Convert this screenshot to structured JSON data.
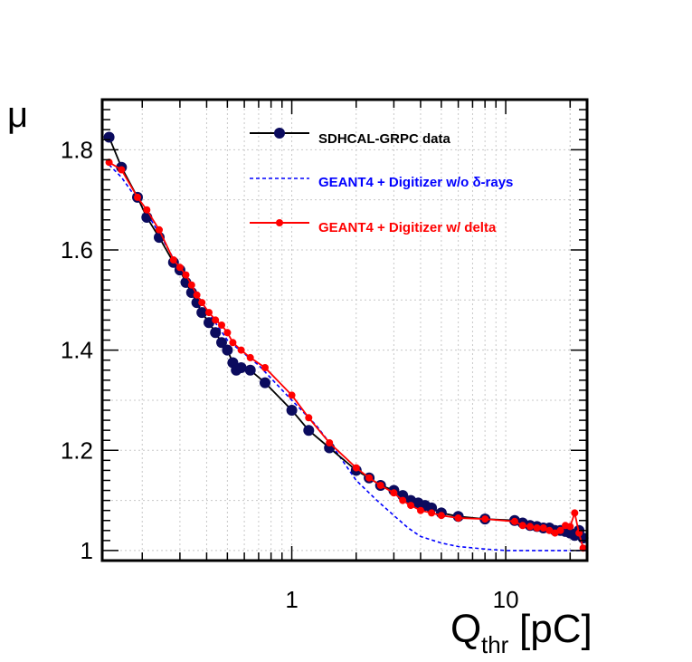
{
  "chart_data": {
    "type": "line",
    "x_scale": "log",
    "xlim": [
      0.13,
      24
    ],
    "ylim": [
      0.98,
      1.9
    ],
    "xlabel_main": "Q",
    "xlabel_sub": "thr",
    "xlabel_unit": "[pC]",
    "ylabel": "μ",
    "grid": true,
    "y_ticks": [
      {
        "value": 1.0,
        "label": "1"
      },
      {
        "value": 1.2,
        "label": "1.2"
      },
      {
        "value": 1.4,
        "label": "1.4"
      },
      {
        "value": 1.6,
        "label": "1.6"
      },
      {
        "value": 1.8,
        "label": "1.8"
      }
    ],
    "x_tick_labels": [
      {
        "value": 1,
        "label": "1"
      },
      {
        "value": 10,
        "label": "10"
      }
    ],
    "legend_position": "top-right",
    "series": [
      {
        "name": "SDHCAL-GRPC data",
        "color": "#0b0b5e",
        "line_color": "#000000",
        "style": "solid-markers",
        "x": [
          0.14,
          0.16,
          0.19,
          0.21,
          0.24,
          0.28,
          0.3,
          0.32,
          0.34,
          0.36,
          0.38,
          0.41,
          0.44,
          0.47,
          0.5,
          0.53,
          0.55,
          0.58,
          0.64,
          0.75,
          1.0,
          1.2,
          1.5,
          2.0,
          2.3,
          2.6,
          3.0,
          3.3,
          3.6,
          3.9,
          4.2,
          4.5,
          5.0,
          6.0,
          8.0,
          11.0,
          12.0,
          13.0,
          14.0,
          15.0,
          16.0,
          17.0,
          18.0,
          19.0,
          20.0,
          21.0,
          22.0,
          23.0
        ],
        "y": [
          1.825,
          1.765,
          1.705,
          1.665,
          1.625,
          1.575,
          1.56,
          1.535,
          1.515,
          1.495,
          1.475,
          1.455,
          1.435,
          1.415,
          1.4,
          1.375,
          1.36,
          1.365,
          1.36,
          1.335,
          1.28,
          1.24,
          1.205,
          1.16,
          1.145,
          1.13,
          1.12,
          1.11,
          1.1,
          1.095,
          1.09,
          1.085,
          1.075,
          1.068,
          1.063,
          1.06,
          1.055,
          1.05,
          1.048,
          1.045,
          1.045,
          1.04,
          1.04,
          1.038,
          1.035,
          1.03,
          1.04,
          1.025
        ]
      },
      {
        "name": "GEANT4 + Digitizer w/o δ-rays",
        "color": "#0000ff",
        "style": "dashed",
        "x": [
          0.14,
          0.16,
          0.19,
          0.22,
          0.25,
          0.3,
          0.4,
          0.5,
          0.7,
          1.0,
          1.3,
          1.6,
          2.0,
          2.5,
          3.0,
          3.5,
          4.0,
          5.0,
          6.0,
          8.0,
          10.0,
          15.0,
          20.0,
          24.0
        ],
        "y": [
          1.77,
          1.745,
          1.7,
          1.66,
          1.62,
          1.56,
          1.48,
          1.42,
          1.37,
          1.3,
          1.25,
          1.2,
          1.14,
          1.1,
          1.07,
          1.045,
          1.028,
          1.015,
          1.008,
          1.003,
          1.0,
          1.0,
          1.0,
          1.0
        ]
      },
      {
        "name": "GEANT4 + Digitizer w/ delta",
        "color": "#ff0000",
        "style": "solid-markers",
        "x": [
          0.14,
          0.16,
          0.19,
          0.21,
          0.24,
          0.28,
          0.3,
          0.32,
          0.34,
          0.36,
          0.38,
          0.41,
          0.44,
          0.47,
          0.5,
          0.53,
          0.58,
          0.64,
          0.75,
          1.0,
          1.2,
          1.5,
          2.0,
          2.3,
          2.6,
          3.0,
          3.3,
          3.6,
          4.0,
          4.5,
          5.0,
          6.0,
          8.0,
          11.0,
          12.0,
          13.0,
          14.0,
          15.0,
          16.0,
          17.0,
          18.0,
          19.0,
          20.0,
          21.0,
          22.0,
          23.0
        ],
        "y": [
          1.775,
          1.76,
          1.705,
          1.68,
          1.64,
          1.58,
          1.565,
          1.55,
          1.53,
          1.51,
          1.495,
          1.475,
          1.46,
          1.45,
          1.435,
          1.415,
          1.4,
          1.385,
          1.365,
          1.31,
          1.265,
          1.215,
          1.165,
          1.145,
          1.13,
          1.115,
          1.1,
          1.09,
          1.08,
          1.075,
          1.07,
          1.065,
          1.063,
          1.058,
          1.05,
          1.048,
          1.045,
          1.045,
          1.04,
          1.035,
          1.04,
          1.05,
          1.048,
          1.075,
          1.035,
          1.005
        ]
      }
    ]
  }
}
